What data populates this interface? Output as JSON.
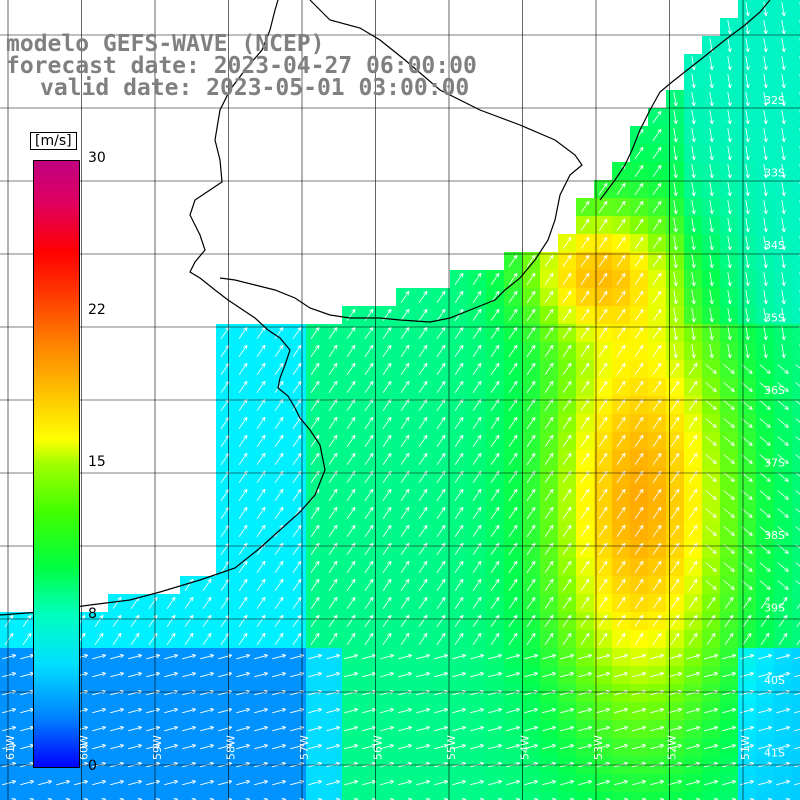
{
  "title": {
    "line1": "modelo GEFS-WAVE (NCEP)",
    "line2": "forecast date: 2023-04-27 06:00:00",
    "line3": "valid date: 2023-05-01 03:00:00"
  },
  "colorbar": {
    "unit": "[m/s]",
    "ticks": [
      "30",
      "22",
      "15",
      "8",
      "0"
    ],
    "tick_values": [
      30,
      22,
      15,
      8,
      0
    ]
  },
  "lat_labels": [
    "32S",
    "33S",
    "34S",
    "35S",
    "36S",
    "37S",
    "38S",
    "39S",
    "40S",
    "41S"
  ],
  "lon_labels": [
    "61W",
    "60W",
    "59W",
    "58W",
    "57W",
    "56W",
    "55W",
    "54W",
    "53W",
    "52W",
    "51W"
  ],
  "colors": {
    "land": "#ffffff",
    "grid": "#000000",
    "coast": "#000000",
    "arrow": "#ffffff"
  }
}
